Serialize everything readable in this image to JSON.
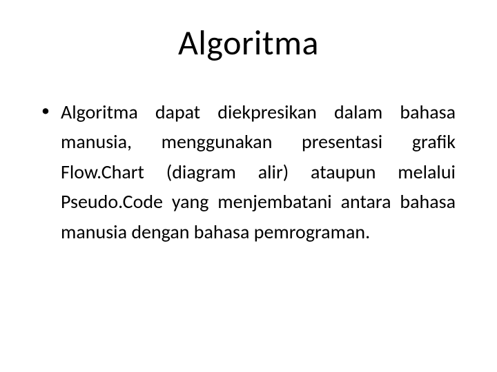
{
  "slide": {
    "title": "Algoritma",
    "bullets": [
      "Algoritma dapat diekpresikan dalam bahasa manusia, menggunakan presentasi grafik Flow.Chart (diagram alir) ataupun melalui Pseudo.Code yang menjembatani antara bahasa manusia dengan bahasa pemrograman."
    ],
    "colors": {
      "background": "#ffffff",
      "text": "#000000"
    },
    "typography": {
      "title_fontsize_pt": 40,
      "body_fontsize_pt": 24,
      "font_family": "Calibri"
    }
  }
}
